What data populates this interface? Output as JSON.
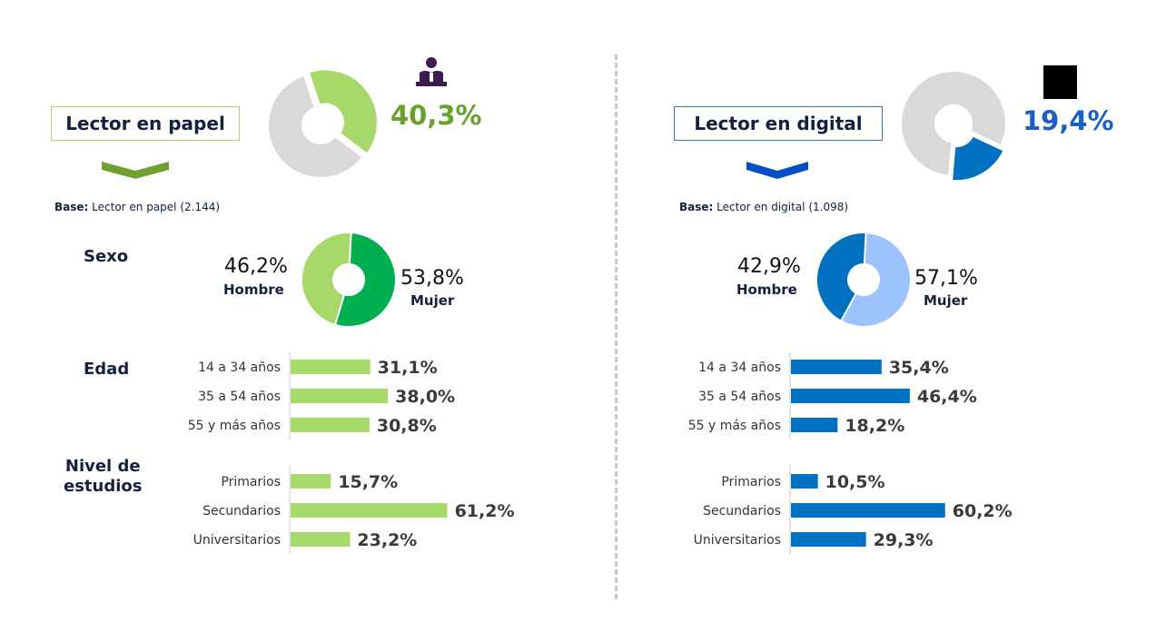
{
  "panels": [
    {
      "title": "Lector en papel",
      "headline": "40,3%",
      "base_label": "Base:",
      "base_text": "Lector en papel (2.144)",
      "icon": "reader-icon",
      "colors": {
        "main": "#a6d96a",
        "dark": "#70a030",
        "headline": "#6aa12d",
        "border": "#a6d96a",
        "accent": "#00b050"
      },
      "sexo": {
        "hombre": "46,2%",
        "mujer": "53,8%"
      }
    },
    {
      "title": "Lector en digital",
      "headline": "19,4%",
      "base_label": "Base:",
      "base_text": "Lector en digital (1.098)",
      "icon": "black-square-icon",
      "colors": {
        "main": "#0070c0",
        "dark": "#0050c8",
        "headline": "#1a5fc8",
        "border": "#2e75b6",
        "light": "#9dc3ff"
      },
      "sexo": {
        "hombre": "42,9%",
        "mujer": "57,1%"
      }
    }
  ],
  "labels": {
    "sexo": "Sexo",
    "edad": "Edad",
    "nivel_line1": "Nivel de",
    "nivel_line2": "estudios",
    "hombre": "Hombre",
    "mujer": "Mujer"
  },
  "chart_data": [
    {
      "type": "pie",
      "title": "Lector en papel",
      "values": [
        40.3,
        59.7
      ],
      "labels": [
        "Lector en papel",
        ""
      ]
    },
    {
      "type": "pie",
      "title": "Sexo",
      "categories": [
        "Hombre",
        "Mujer"
      ],
      "values": [
        46.2,
        53.8
      ]
    },
    {
      "type": "bar",
      "title": "Edad",
      "categories": [
        "14 a 34 años",
        "35 a 54 años",
        "55 y más años"
      ],
      "values": [
        31.1,
        38.0,
        30.8
      ],
      "value_labels": [
        "31,1%",
        "38,0%",
        "30,8%"
      ]
    },
    {
      "type": "bar",
      "title": "Nivel de estudios",
      "categories": [
        "Primarios",
        "Secundarios",
        "Universitarios"
      ],
      "values": [
        15.7,
        61.2,
        23.2
      ],
      "value_labels": [
        "15,7%",
        "61,2%",
        "23,2%"
      ]
    },
    {
      "type": "pie",
      "title": "Lector en digital",
      "values": [
        19.4,
        80.6
      ],
      "labels": [
        "Lector en digital",
        ""
      ]
    },
    {
      "type": "pie",
      "title": "Sexo",
      "categories": [
        "Hombre",
        "Mujer"
      ],
      "values": [
        42.9,
        57.1
      ]
    },
    {
      "type": "bar",
      "title": "Edad",
      "categories": [
        "14 a 34 años",
        "35 a 54 años",
        "55 y más años"
      ],
      "values": [
        35.4,
        46.4,
        18.2
      ],
      "value_labels": [
        "35,4%",
        "46,4%",
        "18,2%"
      ]
    },
    {
      "type": "bar",
      "title": "Nivel de estudios",
      "categories": [
        "Primarios",
        "Secundarios",
        "Universitarios"
      ],
      "values": [
        10.5,
        60.2,
        29.3
      ],
      "value_labels": [
        "10,5%",
        "60,2%",
        "29,3%"
      ]
    }
  ]
}
